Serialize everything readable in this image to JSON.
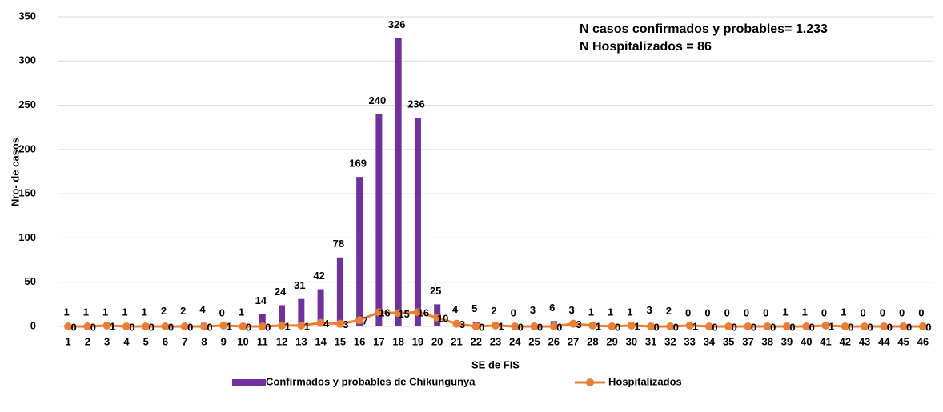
{
  "chart_data": {
    "type": "bar_line",
    "annotations": [
      "N casos confirmados y probables= 1.233",
      "N Hospitalizados = 86"
    ],
    "y_label": "Nro- de casos",
    "x_label": "SE de FIS",
    "categories": [
      1,
      2,
      3,
      4,
      5,
      6,
      7,
      8,
      9,
      10,
      11,
      12,
      13,
      14,
      15,
      16,
      17,
      18,
      19,
      20,
      21,
      22,
      23,
      24,
      25,
      26,
      27,
      28,
      29,
      30,
      31,
      32,
      33,
      34,
      35,
      37,
      38,
      39,
      40,
      41,
      42,
      43,
      44,
      45,
      46
    ],
    "series": [
      {
        "name": "Confirmados y probables de Chikungunya",
        "type": "bar",
        "color": "#7030a0",
        "values": [
          1,
          1,
          1,
          1,
          1,
          2,
          2,
          4,
          0,
          1,
          14,
          24,
          31,
          42,
          78,
          169,
          240,
          326,
          236,
          25,
          4,
          5,
          2,
          0,
          3,
          6,
          3,
          1,
          1,
          1,
          3,
          2,
          0,
          0,
          0,
          0,
          0,
          1,
          1,
          0,
          1,
          0,
          0,
          0,
          0
        ]
      },
      {
        "name": "Hospitalizados",
        "type": "line",
        "color": "#ed7d31",
        "values": [
          0,
          0,
          1,
          0,
          0,
          0,
          0,
          0,
          1,
          0,
          0,
          1,
          1,
          4,
          3,
          7,
          16,
          15,
          16,
          10,
          3,
          0,
          1,
          0,
          0,
          0,
          3,
          1,
          0,
          1,
          0,
          0,
          1,
          0,
          0,
          0,
          0,
          0,
          0,
          1,
          0,
          0,
          0,
          0,
          0
        ]
      }
    ],
    "ylim": [
      0,
      350
    ],
    "yticks": [
      0,
      50,
      100,
      150,
      200,
      250,
      300,
      350
    ],
    "grid": true
  }
}
